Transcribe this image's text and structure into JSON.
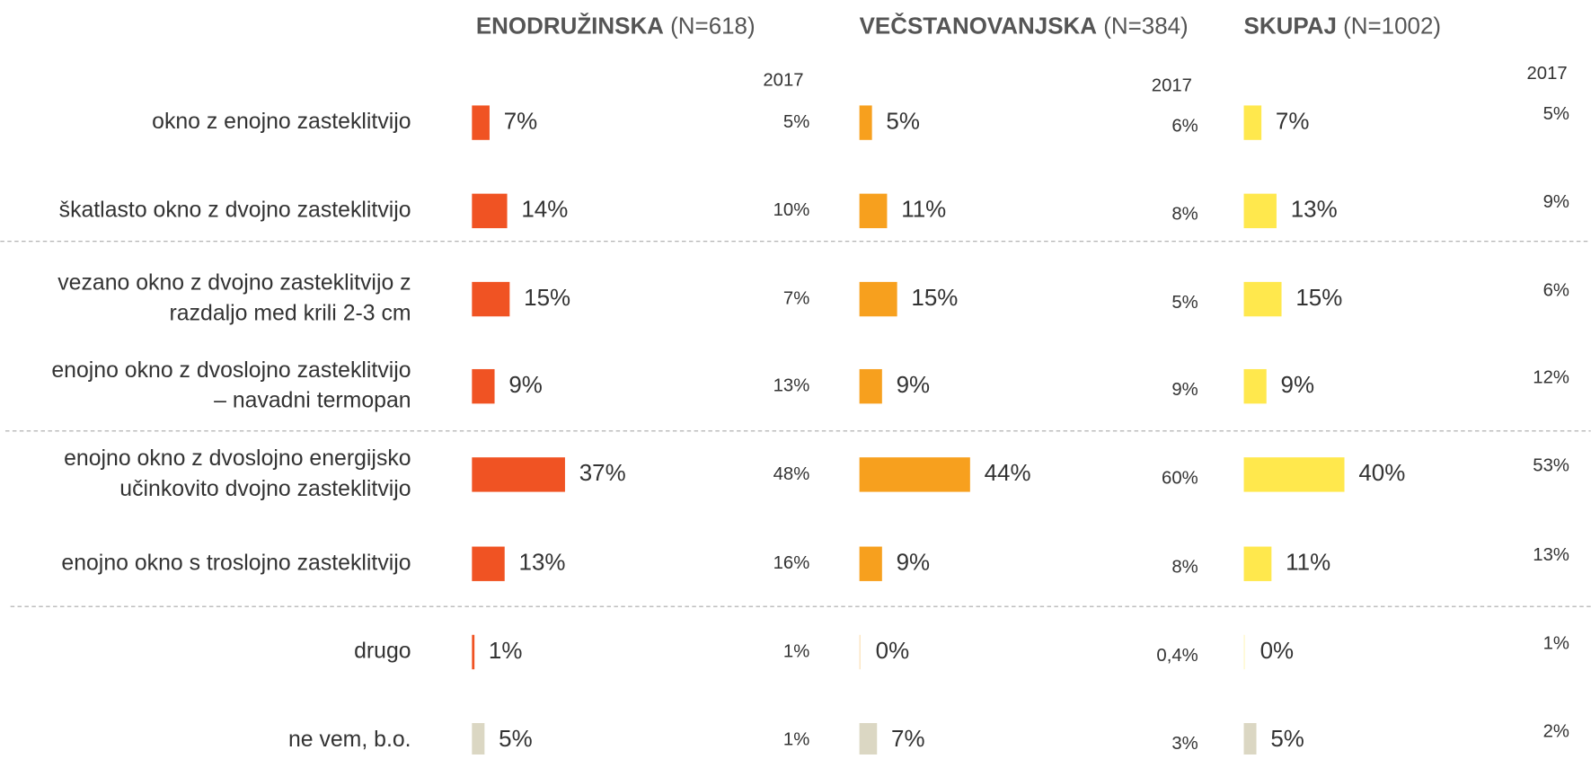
{
  "chart_data": {
    "type": "bar",
    "orientation": "horizontal",
    "year_label": "2017",
    "categories": [
      [
        "okno z enojno zasteklitvijo"
      ],
      [
        "škatlasto okno z dvojno zasteklitvijo"
      ],
      [
        "vezano okno z dvojno zasteklitvijo z",
        "razdaljo med krili 2-3 cm"
      ],
      [
        "enojno okno z dvoslojno zasteklitvijo",
        "– navadni termopan"
      ],
      [
        "enojno okno z dvoslojno energijsko",
        "učinkovito dvojno zasteklitvijo"
      ],
      [
        "enojno okno s troslojno zasteklitvijo"
      ],
      [
        "drugo"
      ],
      [
        "ne vem, b.o."
      ]
    ],
    "series": [
      {
        "name": "ENODRUŽINSKA",
        "n_label": "(N=618)",
        "colors": [
          "#f05323",
          "#f05323",
          "#f05323",
          "#f05323",
          "#f05323",
          "#f05323",
          "#f05323",
          "#dbd7c3"
        ],
        "values": [
          7,
          14,
          15,
          9,
          37,
          13,
          1,
          5
        ],
        "value_labels": [
          "7%",
          "14%",
          "15%",
          "9%",
          "37%",
          "13%",
          "1%",
          "5%"
        ],
        "values_2017": [
          5,
          10,
          7,
          13,
          48,
          16,
          1,
          1
        ],
        "value_labels_2017": [
          "5%",
          "10%",
          "7%",
          "13%",
          "48%",
          "16%",
          "1%",
          "1%"
        ],
        "colors_2017": [
          "#8c8c8c",
          "#00a651",
          "#8c8c8c",
          "#e8000b",
          "#e8000b",
          "#8c8c8c",
          "#8c8c8c",
          "#00a651"
        ]
      },
      {
        "name": "VEČSTANOVANJSKA",
        "n_label": "(N=384)",
        "colors": [
          "#f7a01e",
          "#f7a01e",
          "#f7a01e",
          "#f7a01e",
          "#f7a01e",
          "#f7a01e",
          "#f7a01e",
          "#dbd7c3"
        ],
        "values": [
          5,
          11,
          15,
          9,
          44,
          9,
          0,
          7
        ],
        "value_labels": [
          "5%",
          "11%",
          "15%",
          "9%",
          "44%",
          "9%",
          "0%",
          "7%"
        ],
        "values_2017": [
          6,
          8,
          5,
          9,
          60,
          8,
          0.4,
          3
        ],
        "value_labels_2017": [
          "6%",
          "8%",
          "5%",
          "9%",
          "60%",
          "8%",
          "0,4%",
          "3%"
        ],
        "colors_2017": [
          "#8c8c8c",
          "#8c8c8c",
          "#00a651",
          "#8c8c8c",
          "#e8000b",
          "#8c8c8c",
          "#8c8c8c",
          "#00a651"
        ]
      },
      {
        "name": "SKUPAJ",
        "n_label": "(N=1002)",
        "colors": [
          "#ffe84d",
          "#ffe84d",
          "#ffe84d",
          "#ffe84d",
          "#ffe84d",
          "#ffe84d",
          "#ffe84d",
          "#dbd7c3"
        ],
        "values": [
          7,
          13,
          15,
          9,
          40,
          11,
          0,
          5
        ],
        "value_labels": [
          "7%",
          "13%",
          "15%",
          "9%",
          "40%",
          "11%",
          "0%",
          "5%"
        ],
        "values_2017": [
          5,
          9,
          6,
          12,
          53,
          13,
          1,
          2
        ],
        "value_labels_2017": [
          "5%",
          "9%",
          "6%",
          "12%",
          "53%",
          "13%",
          "1%",
          "2%"
        ],
        "colors_2017": [
          "#8c8c8c",
          "#00a651",
          "#00a651",
          "#8c8c8c",
          "#e8000b",
          "#8c8c8c",
          "#8c8c8c",
          "#00a651"
        ]
      }
    ]
  }
}
